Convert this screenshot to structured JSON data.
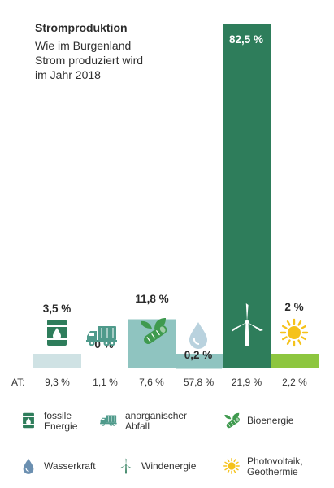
{
  "chart_data": {
    "type": "bar",
    "title": "Stromproduktion",
    "subtitle": "Wie im Burgenland\nStrom produziert wird\nim Jahr 2018",
    "categories": [
      "fossile Energie",
      "anorganischer Abfall",
      "Bioenergie",
      "Wasserkraft",
      "Windenergie",
      "Photovoltaik, Geothermie"
    ],
    "values": [
      3.5,
      0,
      11.8,
      0.2,
      82.5,
      2
    ],
    "value_labels": [
      "3,5 %",
      "0 %",
      "11,8 %",
      "0,2 %",
      "82,5 %",
      "2 %"
    ],
    "ylim": [
      0,
      82.5
    ],
    "at_label": "AT:",
    "at_values": [
      "9,3 %",
      "1,1 %",
      "7,6 %",
      "57,8 %",
      "21,9 %",
      "2,2 %"
    ],
    "colors": {
      "fossil": "#cfe2e4",
      "waste": "#cfe2e4",
      "bio": "#8fc4c0",
      "water": "#8fc4c0",
      "wind": "#2e7d5b",
      "solar": "#8dc63f",
      "icon_dark": "#2e7d5b",
      "icon_mid": "#4f9a8b",
      "icon_green": "#3f9a4f",
      "water_drop": "#b9d2de",
      "water_drop_legend": "#6b8fb0",
      "sun": "#f5c21b"
    }
  },
  "legend": [
    {
      "label": "fossile\nEnergie",
      "icon": "oil-barrel-icon"
    },
    {
      "label": "anorganischer\nAbfall",
      "icon": "garbage-truck-icon"
    },
    {
      "label": "Bioenergie",
      "icon": "biomass-leaf-icon"
    },
    {
      "label": "Wasserkraft",
      "icon": "water-drop-icon"
    },
    {
      "label": "Windenergie",
      "icon": "wind-turbine-icon"
    },
    {
      "label": "Photovoltaik,\nGeothermie",
      "icon": "sun-icon"
    }
  ]
}
